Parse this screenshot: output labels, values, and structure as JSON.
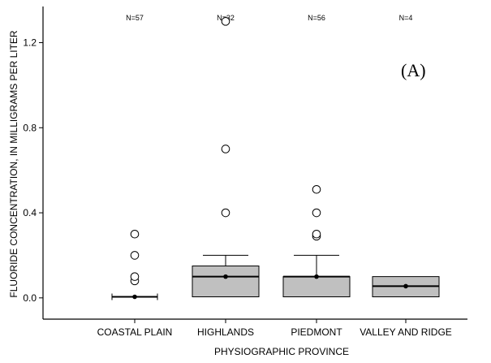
{
  "chart_data": {
    "type": "box",
    "title": "",
    "panel_label": "(A)",
    "xlabel": "PHYSIOGRAPHIC PROVINCE",
    "ylabel": "FLUORIDE CONCENTRATION, IN MILLIGRAMS PER LITER",
    "ylim": [
      -0.1,
      1.37
    ],
    "yticks": [
      0.0,
      0.4,
      0.8,
      1.2
    ],
    "ytick_labels": [
      "0.0",
      "0.4",
      "0.8",
      "1.2"
    ],
    "grid": false,
    "categories": [
      "COASTAL PLAIN",
      "HIGHLANDS",
      "PIEDMONT",
      "VALLEY AND RIDGE"
    ],
    "n_labels": [
      "N=57",
      "N=32",
      "N=56",
      "N=4"
    ],
    "boxes": [
      {
        "name": "COASTAL PLAIN",
        "q1": 0.005,
        "median": 0.005,
        "q3": 0.005,
        "whisker_low": 0.005,
        "whisker_high": 0.005,
        "has_box": false,
        "outliers": [
          0.08,
          0.1,
          0.2,
          0.3
        ]
      },
      {
        "name": "HIGHLANDS",
        "q1": 0.005,
        "median": 0.1,
        "q3": 0.15,
        "whisker_low": 0.005,
        "whisker_high": 0.2,
        "has_box": true,
        "outliers": [
          0.4,
          0.7,
          1.3
        ]
      },
      {
        "name": "PIEDMONT",
        "q1": 0.005,
        "median": 0.1,
        "q3": 0.1,
        "whisker_low": 0.005,
        "whisker_high": 0.2,
        "has_box": true,
        "outliers": [
          0.29,
          0.3,
          0.4,
          0.51
        ]
      },
      {
        "name": "VALLEY AND RIDGE",
        "q1": 0.005,
        "median": 0.055,
        "q3": 0.1,
        "whisker_low": 0.005,
        "whisker_high": 0.1,
        "has_box": true,
        "outliers": []
      }
    ],
    "box_fill": "#c0c0c0"
  }
}
